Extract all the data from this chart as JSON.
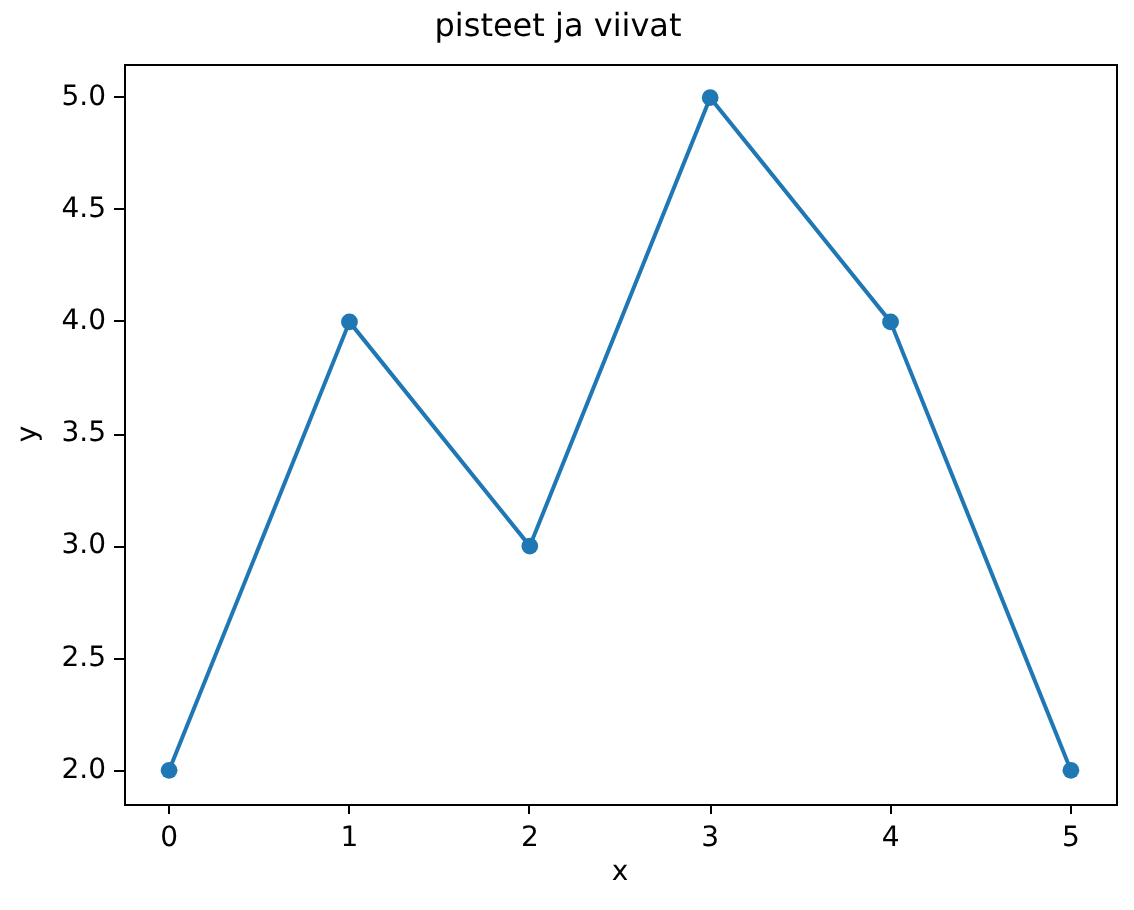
{
  "chart_data": {
    "type": "line",
    "title": "pisteet ja viivat",
    "xlabel": "x",
    "ylabel": "y",
    "x": [
      0,
      1,
      2,
      3,
      4,
      5
    ],
    "values": [
      2,
      4,
      3,
      5,
      4,
      2
    ],
    "color": "#1f77b4",
    "marker": "circle",
    "line_style": "solid",
    "xlim": [
      -0.25,
      5.25
    ],
    "ylim": [
      1.85,
      5.15
    ],
    "xticks": [
      0,
      1,
      2,
      3,
      4,
      5
    ],
    "yticks": [
      {
        "value": 2,
        "label": "2.0"
      },
      {
        "value": 2.5,
        "label": "2.5"
      },
      {
        "value": 3,
        "label": "3.0"
      },
      {
        "value": 3.5,
        "label": "3.5"
      },
      {
        "value": 4,
        "label": "4.0"
      },
      {
        "value": 4.5,
        "label": "4.5"
      },
      {
        "value": 5,
        "label": "5.0"
      }
    ]
  }
}
